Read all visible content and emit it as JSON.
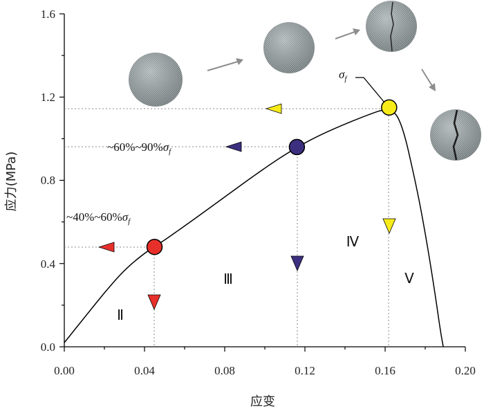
{
  "chart_data": {
    "type": "line",
    "xlabel": "应变",
    "ylabel": "应力(MPa)",
    "xlim": [
      0.0,
      0.2
    ],
    "ylim": [
      0.0,
      1.6
    ],
    "xticks": [
      "0.00",
      "0.04",
      "0.08",
      "0.12",
      "0.16",
      "0.20"
    ],
    "yticks": [
      "0.0",
      "0.4",
      "0.8",
      "1.2",
      "1.6"
    ],
    "curve": [
      [
        0.0,
        0.02
      ],
      [
        0.005,
        0.08
      ],
      [
        0.01,
        0.14
      ],
      [
        0.02,
        0.26
      ],
      [
        0.03,
        0.37
      ],
      [
        0.04,
        0.45
      ],
      [
        0.045,
        0.48
      ],
      [
        0.06,
        0.58
      ],
      [
        0.08,
        0.72
      ],
      [
        0.1,
        0.86
      ],
      [
        0.116,
        0.96
      ],
      [
        0.13,
        1.03
      ],
      [
        0.15,
        1.11
      ],
      [
        0.162,
        1.15
      ],
      [
        0.168,
        1.09
      ],
      [
        0.175,
        0.8
      ],
      [
        0.18,
        0.55
      ],
      [
        0.185,
        0.25
      ],
      [
        0.1875,
        0.08
      ],
      [
        0.189,
        0.0
      ]
    ],
    "key_points": [
      {
        "x": 0.045,
        "y": 0.48,
        "color": "#e8302b"
      },
      {
        "x": 0.116,
        "y": 0.96,
        "color": "#3d2f80"
      },
      {
        "x": 0.162,
        "y": 1.15,
        "color": "#f7ec1a"
      }
    ],
    "annotations": {
      "a1_prefix": "~40%~60%",
      "a2_prefix": "~60%~90%",
      "sigma": "σ",
      "sub_f": "f"
    },
    "stages": [
      "Ⅱ",
      "Ⅲ",
      "Ⅳ",
      "Ⅴ"
    ]
  }
}
